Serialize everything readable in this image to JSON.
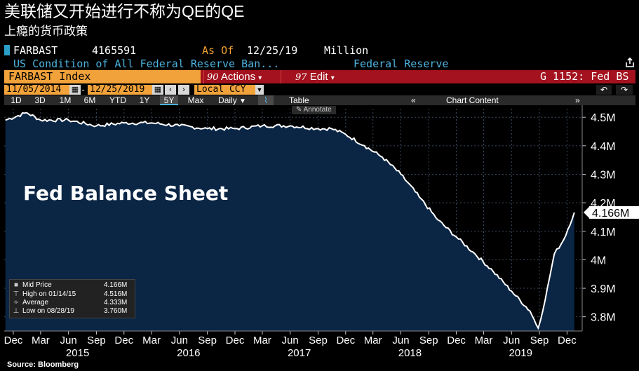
{
  "headline": "美联储又开始进行不称为QE的QE",
  "subhead": "上瘾的货币政策",
  "security": {
    "code": "FARBAST",
    "value": "4165591",
    "as_of_label": "As Of",
    "as_of_date": "12/25/19",
    "unit": "Million",
    "description": "US Condition of All Federal Reserve Ban...",
    "source": "Federal Reserve"
  },
  "toolbar": {
    "index_name": "FARBAST Index",
    "actions_num": "90",
    "actions_label": "Actions",
    "edit_num": "97",
    "edit_label": "Edit",
    "function": "G 1152: Fed BS",
    "start_date": "11/05/2014",
    "end_date": "12/25/2019",
    "currency": "Local CCY",
    "periods": [
      "1D",
      "3D",
      "1M",
      "6M",
      "YTD",
      "1Y",
      "5Y",
      "Max"
    ],
    "frequency": "Daily",
    "table_label": "Table",
    "chart_content_label": "Chart Content",
    "annotate_label": "Annotate"
  },
  "colors": {
    "area_fill": "#0b2545",
    "line": "#ffffff",
    "accent_orange": "#f2a23a",
    "bar_red": "#a3121e",
    "link_blue": "#4db3e0"
  },
  "icons": {
    "share": "share-icon",
    "calendar": "calendar-icon",
    "undo": "undo-icon",
    "redo": "redo-icon",
    "line_chart": "line-chart-icon",
    "collapse": "double-chevron-icon",
    "pencil": "pencil-icon"
  },
  "legend": [
    {
      "symbol": "square",
      "label": "Mid Price",
      "value": "4.166M"
    },
    {
      "symbol": "high",
      "label": "High on 01/14/15",
      "value": "4.516M"
    },
    {
      "symbol": "avg",
      "label": "Average",
      "value": "4.333M"
    },
    {
      "symbol": "low",
      "label": "Low on 08/28/19",
      "value": "3.760M"
    }
  ],
  "source_note": "Source: Bloomberg",
  "chart_data": {
    "type": "area",
    "title": "Fed Balance Sheet",
    "series": [
      {
        "name": "Mid Price",
        "x": [
          "2014-11-05",
          "2015-01-14",
          "2015-03-01",
          "2015-06-01",
          "2015-09-01",
          "2015-12-01",
          "2016-03-01",
          "2016-06-01",
          "2016-09-01",
          "2016-12-01",
          "2017-03-01",
          "2017-06-01",
          "2017-09-01",
          "2017-10-15",
          "2017-12-01",
          "2018-02-01",
          "2018-04-01",
          "2018-06-01",
          "2018-08-01",
          "2018-10-01",
          "2018-12-01",
          "2019-02-01",
          "2019-04-01",
          "2019-06-01",
          "2019-08-01",
          "2019-08-28",
          "2019-09-20",
          "2019-10-20",
          "2019-11-20",
          "2019-12-25"
        ],
        "y": [
          4.49,
          4.516,
          4.49,
          4.49,
          4.47,
          4.48,
          4.48,
          4.47,
          4.46,
          4.46,
          4.47,
          4.47,
          4.46,
          4.46,
          4.44,
          4.4,
          4.36,
          4.3,
          4.22,
          4.14,
          4.08,
          4.02,
          3.96,
          3.89,
          3.82,
          3.76,
          3.86,
          4.02,
          4.07,
          4.166
        ]
      }
    ],
    "last_value_label": "4.166M",
    "x_tick_labels": [
      "Dec",
      "Mar",
      "Jun",
      "Sep",
      "Dec",
      "Mar",
      "Jun",
      "Sep",
      "Dec",
      "Mar",
      "Jun",
      "Sep",
      "Dec",
      "Mar",
      "Jun",
      "Sep",
      "Dec",
      "Mar",
      "Jun",
      "Sep",
      "Dec"
    ],
    "x_tick_dates": [
      "2014-12-01",
      "2015-03-01",
      "2015-06-01",
      "2015-09-01",
      "2015-12-01",
      "2016-03-01",
      "2016-06-01",
      "2016-09-01",
      "2016-12-01",
      "2017-03-01",
      "2017-06-01",
      "2017-09-01",
      "2017-12-01",
      "2018-03-01",
      "2018-06-01",
      "2018-09-01",
      "2018-12-01",
      "2019-03-01",
      "2019-06-01",
      "2019-09-01",
      "2019-12-01"
    ],
    "year_labels": [
      "2015",
      "2016",
      "2017",
      "2018",
      "2019"
    ],
    "year_dates": [
      "2015-07-01",
      "2016-07-01",
      "2017-07-01",
      "2018-07-01",
      "2019-07-01"
    ],
    "y_tick_labels": [
      "4.5M",
      "4.4M",
      "4.3M",
      "4.2M",
      "4.1M",
      "4M",
      "3.9M",
      "3.8M"
    ],
    "y_tick_values": [
      4.5,
      4.4,
      4.3,
      4.2,
      4.1,
      4.0,
      3.9,
      3.8
    ],
    "ylim": [
      3.75,
      4.53
    ],
    "xlim": [
      "2014-11-01",
      "2020-01-20"
    ],
    "grid": true
  }
}
